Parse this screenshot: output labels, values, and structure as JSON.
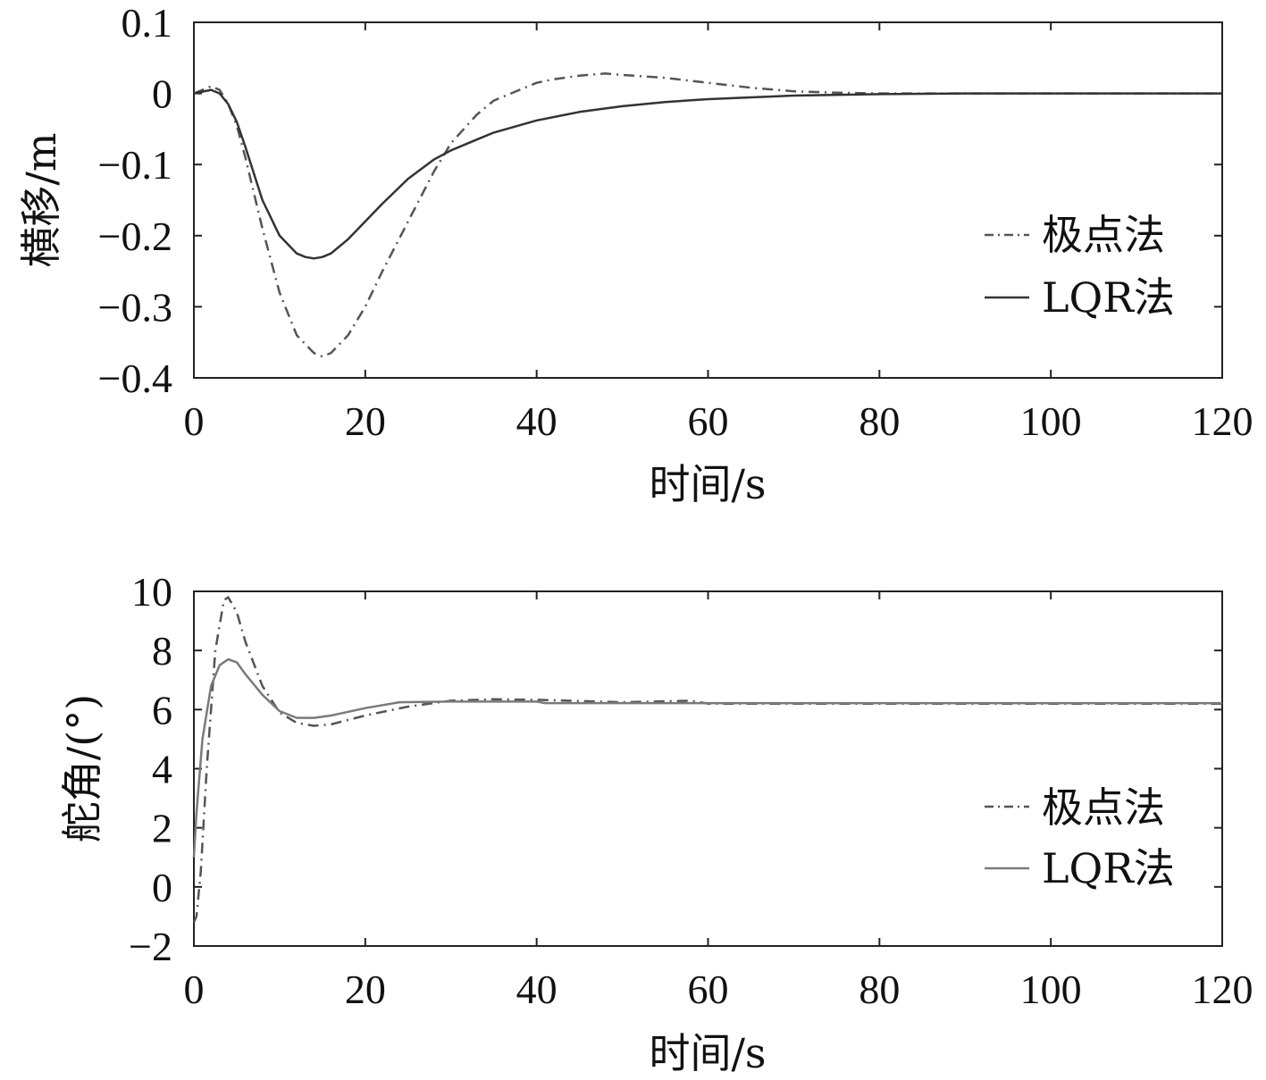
{
  "chart_data": [
    {
      "type": "line",
      "title": "",
      "xlabel": "时间/s",
      "ylabel": "横移/m",
      "xlim": [
        0,
        120
      ],
      "ylim": [
        -0.4,
        0.1
      ],
      "xticks": [
        "0",
        "20",
        "40",
        "60",
        "80",
        "100",
        "120"
      ],
      "yticks": [
        "0.1",
        "0",
        "−0.1",
        "−0.2",
        "−0.3",
        "−0.4"
      ],
      "xtick_values": [
        0,
        20,
        40,
        60,
        80,
        100,
        120
      ],
      "ytick_values": [
        0.1,
        0,
        -0.1,
        -0.2,
        -0.3,
        -0.4
      ],
      "grid": false,
      "legend_position": "right",
      "series": [
        {
          "name": "极点法",
          "style": "dash-dot",
          "color": "#555555",
          "x": [
            0,
            2,
            3,
            4,
            5,
            6,
            8,
            10,
            12,
            14,
            15,
            16,
            18,
            20,
            22,
            25,
            28,
            30,
            33,
            35,
            38,
            40,
            42,
            45,
            48,
            50,
            55,
            60,
            65,
            70,
            75,
            80,
            90,
            100,
            120
          ],
          "y": [
            0,
            0.01,
            0.005,
            -0.015,
            -0.045,
            -0.09,
            -0.19,
            -0.28,
            -0.34,
            -0.365,
            -0.37,
            -0.365,
            -0.34,
            -0.3,
            -0.25,
            -0.18,
            -0.11,
            -0.07,
            -0.03,
            -0.01,
            0.005,
            0.015,
            0.02,
            0.025,
            0.028,
            0.026,
            0.022,
            0.015,
            0.008,
            0.003,
            0.001,
            0,
            0,
            0,
            0
          ]
        },
        {
          "name": "LQR法",
          "style": "solid",
          "color": "#333333",
          "x": [
            0,
            2,
            3,
            4,
            5,
            6,
            8,
            10,
            12,
            13,
            14,
            15,
            16,
            18,
            20,
            22,
            25,
            28,
            30,
            33,
            35,
            40,
            45,
            50,
            55,
            60,
            70,
            80,
            90,
            100,
            120
          ],
          "y": [
            0,
            0.005,
            0,
            -0.015,
            -0.04,
            -0.075,
            -0.15,
            -0.2,
            -0.225,
            -0.23,
            -0.232,
            -0.23,
            -0.225,
            -0.205,
            -0.18,
            -0.155,
            -0.12,
            -0.093,
            -0.08,
            -0.065,
            -0.055,
            -0.038,
            -0.026,
            -0.018,
            -0.012,
            -0.008,
            -0.003,
            -0.001,
            0,
            0,
            0
          ]
        }
      ]
    },
    {
      "type": "line",
      "title": "",
      "xlabel": "时间/s",
      "ylabel": "舵角/(°)",
      "xlim": [
        0,
        120
      ],
      "ylim": [
        -2,
        10
      ],
      "xticks": [
        "0",
        "20",
        "40",
        "60",
        "80",
        "100",
        "120"
      ],
      "yticks": [
        "10",
        "8",
        "6",
        "4",
        "2",
        "0",
        "−2"
      ],
      "xtick_values": [
        0,
        20,
        40,
        60,
        80,
        100,
        120
      ],
      "ytick_values": [
        10,
        8,
        6,
        4,
        2,
        0,
        -2
      ],
      "grid": false,
      "legend_position": "right",
      "series": [
        {
          "name": "极点法",
          "style": "dash-dot",
          "color": "#555555",
          "x": [
            0,
            0.3,
            0.8,
            1.5,
            2.5,
            3.5,
            4,
            5,
            6,
            8,
            10,
            12,
            14,
            16,
            20,
            25,
            30,
            35,
            40,
            50,
            58,
            60,
            80,
            100,
            120
          ],
          "y": [
            -1.2,
            -1.0,
            0.5,
            4.0,
            8.0,
            9.7,
            9.8,
            9.3,
            8.3,
            6.8,
            5.9,
            5.55,
            5.45,
            5.5,
            5.8,
            6.1,
            6.3,
            6.35,
            6.33,
            6.25,
            6.3,
            6.2,
            6.2,
            6.2,
            6.2
          ]
        },
        {
          "name": "LQR法",
          "style": "solid",
          "color": "#7a7a7a",
          "x": [
            0,
            0.3,
            1,
            2,
            3,
            4,
            5,
            6,
            8,
            10,
            12,
            14,
            16,
            20,
            24,
            30,
            40,
            41,
            60,
            80,
            100,
            120
          ],
          "y": [
            1.0,
            2.5,
            5.0,
            6.8,
            7.5,
            7.7,
            7.6,
            7.2,
            6.5,
            5.95,
            5.72,
            5.72,
            5.8,
            6.05,
            6.25,
            6.27,
            6.27,
            6.22,
            6.22,
            6.22,
            6.22,
            6.22
          ]
        }
      ]
    }
  ]
}
